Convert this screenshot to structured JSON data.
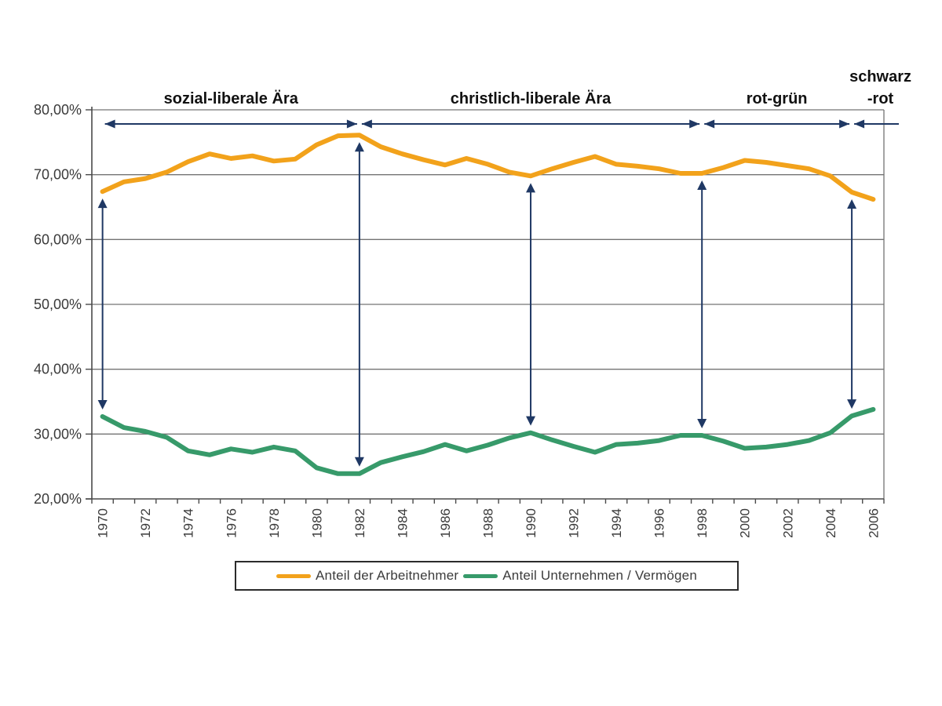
{
  "chart_data": {
    "type": "line",
    "title": "",
    "xlabel": "",
    "ylabel": "",
    "grid": "horizontal",
    "x": [
      1970,
      1971,
      1972,
      1973,
      1974,
      1975,
      1976,
      1977,
      1978,
      1979,
      1980,
      1981,
      1982,
      1983,
      1984,
      1985,
      1986,
      1987,
      1988,
      1989,
      1990,
      1991,
      1992,
      1993,
      1994,
      1995,
      1996,
      1997,
      1998,
      1999,
      2000,
      2001,
      2002,
      2003,
      2004,
      2005,
      2006
    ],
    "x_tick_labels": [
      "1970",
      "1972",
      "1974",
      "1976",
      "1978",
      "1980",
      "1982",
      "1984",
      "1986",
      "1988",
      "1990",
      "1992",
      "1994",
      "1996",
      "1998",
      "2000",
      "2002",
      "2004",
      "2006"
    ],
    "y_axis": {
      "min": 20,
      "max": 80,
      "step": 10,
      "tick_labels": [
        "80,00%",
        "70,00%",
        "60,00%",
        "50,00%",
        "40,00%",
        "30,00%",
        "20,00%"
      ]
    },
    "series": [
      {
        "name": "Anteil der Arbeitnehmer",
        "color": "#F2A21B",
        "values": [
          67.4,
          68.9,
          69.4,
          70.4,
          72.0,
          73.2,
          72.5,
          72.9,
          72.1,
          72.4,
          74.6,
          76.0,
          76.1,
          74.3,
          73.2,
          72.3,
          71.5,
          72.5,
          71.6,
          70.4,
          69.8,
          70.9,
          71.9,
          72.8,
          71.6,
          71.3,
          70.9,
          70.2,
          70.2,
          71.1,
          72.2,
          71.9,
          71.4,
          70.9,
          69.8,
          67.3,
          66.2
        ]
      },
      {
        "name": "Anteil Unternehmen / Vermögen",
        "color": "#379A6A",
        "values": [
          32.7,
          31.0,
          30.4,
          29.5,
          27.4,
          26.8,
          27.7,
          27.2,
          28.0,
          27.4,
          24.8,
          23.9,
          23.9,
          25.6,
          26.5,
          27.3,
          28.4,
          27.4,
          28.3,
          29.4,
          30.2,
          29.1,
          28.1,
          27.2,
          28.4,
          28.6,
          29.0,
          29.8,
          29.8,
          28.9,
          27.8,
          28.0,
          28.4,
          29.0,
          30.2,
          32.8,
          33.8
        ]
      }
    ],
    "gap_arrows": {
      "color": "#1F3864",
      "years": [
        1970,
        1982,
        1990,
        1998,
        2005
      ]
    },
    "eras": [
      {
        "label": "sozial-liberale Ära",
        "from": 1970,
        "to": 1982
      },
      {
        "label": "christlich-liberale Ära",
        "from": 1982,
        "to": 1998
      },
      {
        "label": "rot-grün",
        "from": 1998,
        "to": 2005
      },
      {
        "label": "schwarz -rot",
        "label_lines": [
          "schwarz",
          "-rot"
        ],
        "from": 2005,
        "to": null
      }
    ],
    "era_arrow_color": "#1F3864",
    "legend_position": "bottom",
    "axis_color": "#4a4a4a",
    "grid_color": "#737373",
    "tick_label_color": "#3a3a3a",
    "era_label_color": "#111111"
  }
}
